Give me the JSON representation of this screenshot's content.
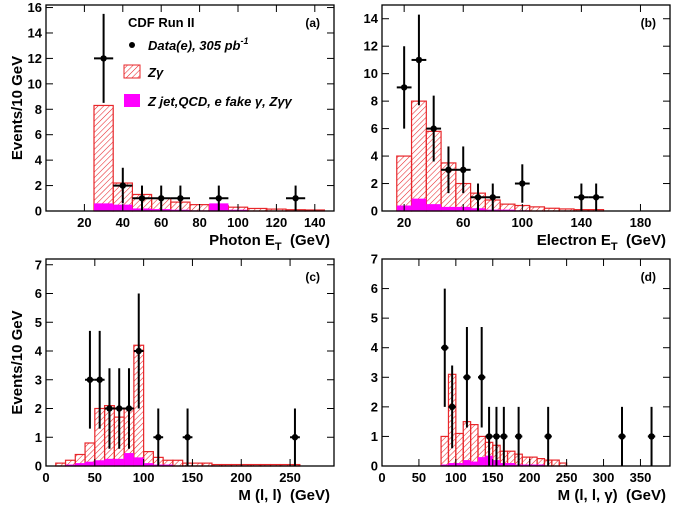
{
  "figure": {
    "legend": {
      "experiment": "CDF Run II",
      "data_label": "Data(e), 305 pb",
      "data_lumi_exp": "-1",
      "zg_label": "Zγ",
      "bg_label": "Z jet,QCD, e fake γ, Zγγ"
    },
    "colors": {
      "zg": "#e8262a",
      "bg": "#ff00ff",
      "data": "#000000"
    }
  },
  "chart_data": [
    {
      "id": "a",
      "type": "bar",
      "panel_label": "(a)",
      "xlabel": "Photon E",
      "xlabel_sub": "T",
      "xlabel_unit": "(GeV)",
      "ylabel": "Events/10 GeV",
      "xlim": [
        0,
        150
      ],
      "ylim": [
        0,
        16.2
      ],
      "xticks": [
        20,
        40,
        60,
        80,
        100,
        120,
        140
      ],
      "yticks": [
        0,
        2,
        4,
        6,
        8,
        10,
        12,
        14,
        16
      ],
      "bin_edges": [
        25,
        35,
        45,
        55,
        65,
        75,
        85,
        95,
        105,
        115,
        125,
        135,
        145
      ],
      "series": [
        {
          "role": "zg",
          "values": [
            8.3,
            2.2,
            1.3,
            1.0,
            0.7,
            0.5,
            0.4,
            0.3,
            0.2,
            0.15,
            0.1,
            0.08
          ]
        },
        {
          "role": "bg",
          "values": [
            0.6,
            0.5,
            0.2,
            0.15,
            0.1,
            0.05,
            0.6,
            0.1,
            0,
            0,
            0,
            0
          ]
        }
      ],
      "data_points": [
        {
          "x": 30,
          "y": 12,
          "err": 3.5
        },
        {
          "x": 40,
          "y": 2,
          "err": 1.4
        },
        {
          "x": 50,
          "y": 1,
          "err": 1.0
        },
        {
          "x": 60,
          "y": 1,
          "err": 1.0
        },
        {
          "x": 70,
          "y": 1,
          "err": 1.0
        },
        {
          "x": 90,
          "y": 1,
          "err": 1.0
        },
        {
          "x": 130,
          "y": 1,
          "err": 1.0
        }
      ]
    },
    {
      "id": "b",
      "type": "bar",
      "panel_label": "(b)",
      "xlabel": "Electron E",
      "xlabel_sub": "T",
      "xlabel_unit": "(GeV)",
      "ylabel": "",
      "xlim": [
        5,
        200
      ],
      "ylim": [
        0,
        15
      ],
      "xticks": [
        20,
        60,
        100,
        140,
        180
      ],
      "yticks": [
        0,
        2,
        4,
        6,
        8,
        10,
        12,
        14
      ],
      "bin_edges": [
        15,
        25,
        35,
        45,
        55,
        65,
        75,
        85,
        95,
        105,
        115,
        125,
        135,
        145,
        155
      ],
      "series": [
        {
          "role": "zg",
          "values": [
            4.0,
            8.0,
            5.8,
            3.5,
            2.0,
            1.3,
            0.8,
            0.5,
            0.4,
            0.3,
            0.2,
            0.15,
            0.1,
            0.1
          ]
        },
        {
          "role": "bg",
          "values": [
            0.4,
            0.9,
            0.5,
            0.3,
            0.3,
            0.2,
            0.1,
            0.1,
            0.05,
            0,
            0,
            0,
            0,
            0
          ]
        }
      ],
      "data_points": [
        {
          "x": 20,
          "y": 9,
          "err": 3.0
        },
        {
          "x": 30,
          "y": 11,
          "err": 3.3
        },
        {
          "x": 40,
          "y": 6,
          "err": 2.4
        },
        {
          "x": 50,
          "y": 3,
          "err": 1.7
        },
        {
          "x": 60,
          "y": 3,
          "err": 1.7
        },
        {
          "x": 70,
          "y": 1,
          "err": 1.0
        },
        {
          "x": 80,
          "y": 1,
          "err": 1.0
        },
        {
          "x": 100,
          "y": 2,
          "err": 1.4
        },
        {
          "x": 140,
          "y": 1,
          "err": 1.0
        },
        {
          "x": 150,
          "y": 1,
          "err": 1.0
        }
      ]
    },
    {
      "id": "c",
      "type": "bar",
      "panel_label": "(c)",
      "xlabel": "M (l, l)",
      "xlabel_sub": "",
      "xlabel_unit": "(GeV)",
      "ylabel": "Events/10 GeV",
      "xlim": [
        0,
        295
      ],
      "ylim": [
        0,
        7.2
      ],
      "xticks": [
        0,
        50,
        100,
        150,
        200,
        250
      ],
      "yticks": [
        0,
        1,
        2,
        3,
        4,
        5,
        6,
        7
      ],
      "bin_edges": [
        10,
        20,
        30,
        40,
        50,
        60,
        70,
        80,
        90,
        100,
        110,
        120,
        130,
        140,
        150,
        160,
        170,
        180,
        190,
        200,
        210,
        220,
        230,
        240,
        250,
        260
      ],
      "series": [
        {
          "role": "zg",
          "values": [
            0.1,
            0.2,
            0.4,
            0.8,
            2.0,
            2.1,
            1.7,
            2.0,
            4.2,
            0.5,
            0.3,
            0.2,
            0.2,
            0.1,
            0.1,
            0.1,
            0.05,
            0.05,
            0.05,
            0.05,
            0.05,
            0.05,
            0.05,
            0.05,
            0.05
          ]
        },
        {
          "role": "bg",
          "values": [
            0,
            0.05,
            0.1,
            0.15,
            0.2,
            0.25,
            0.25,
            0.45,
            0.3,
            0.1,
            0.05,
            0.05,
            0,
            0,
            0,
            0,
            0,
            0,
            0,
            0,
            0,
            0,
            0,
            0,
            0
          ]
        }
      ],
      "data_points": [
        {
          "x": 45,
          "y": 3,
          "err": 1.7
        },
        {
          "x": 55,
          "y": 3,
          "err": 1.7
        },
        {
          "x": 65,
          "y": 2,
          "err": 1.4
        },
        {
          "x": 75,
          "y": 2,
          "err": 1.4
        },
        {
          "x": 85,
          "y": 2,
          "err": 1.4
        },
        {
          "x": 95,
          "y": 4,
          "err": 2.0
        },
        {
          "x": 115,
          "y": 1,
          "err": 1.0
        },
        {
          "x": 145,
          "y": 1,
          "err": 1.0
        },
        {
          "x": 255,
          "y": 1,
          "err": 1.0
        }
      ]
    },
    {
      "id": "d",
      "type": "bar",
      "panel_label": "(d)",
      "xlabel": "M (l, l, γ)",
      "xlabel_sub": "",
      "xlabel_unit": "(GeV)",
      "ylabel": "",
      "xlim": [
        0,
        390
      ],
      "ylim": [
        0,
        7
      ],
      "xticks": [
        0,
        50,
        100,
        150,
        200,
        250,
        300,
        350
      ],
      "yticks": [
        0,
        1,
        2,
        3,
        4,
        5,
        6,
        7
      ],
      "bin_edges": [
        80,
        90,
        100,
        110,
        120,
        130,
        140,
        150,
        160,
        170,
        180,
        190,
        200,
        210,
        220,
        230,
        240,
        250
      ],
      "series": [
        {
          "role": "zg",
          "values": [
            1.0,
            3.1,
            1.1,
            1.5,
            1.4,
            1.0,
            0.8,
            0.7,
            0.5,
            0.5,
            0.4,
            0.3,
            0.3,
            0.25,
            0.2,
            0.2,
            0.1
          ]
        },
        {
          "role": "bg",
          "values": [
            0.05,
            0.1,
            0.1,
            0.2,
            0.15,
            0.3,
            0.35,
            0.2,
            0.1,
            0.1,
            0.05,
            0.05,
            0.05,
            0.05,
            0,
            0,
            0
          ]
        }
      ],
      "data_points": [
        {
          "x": 85,
          "y": 4,
          "err": 2.0
        },
        {
          "x": 95,
          "y": 2,
          "err": 1.4
        },
        {
          "x": 115,
          "y": 3,
          "err": 1.7
        },
        {
          "x": 135,
          "y": 3,
          "err": 1.7
        },
        {
          "x": 145,
          "y": 1,
          "err": 1.0
        },
        {
          "x": 155,
          "y": 1,
          "err": 1.0
        },
        {
          "x": 165,
          "y": 1,
          "err": 1.0
        },
        {
          "x": 185,
          "y": 1,
          "err": 1.0
        },
        {
          "x": 225,
          "y": 1,
          "err": 1.0
        },
        {
          "x": 325,
          "y": 1,
          "err": 1.0
        },
        {
          "x": 365,
          "y": 1,
          "err": 1.0
        }
      ]
    }
  ]
}
